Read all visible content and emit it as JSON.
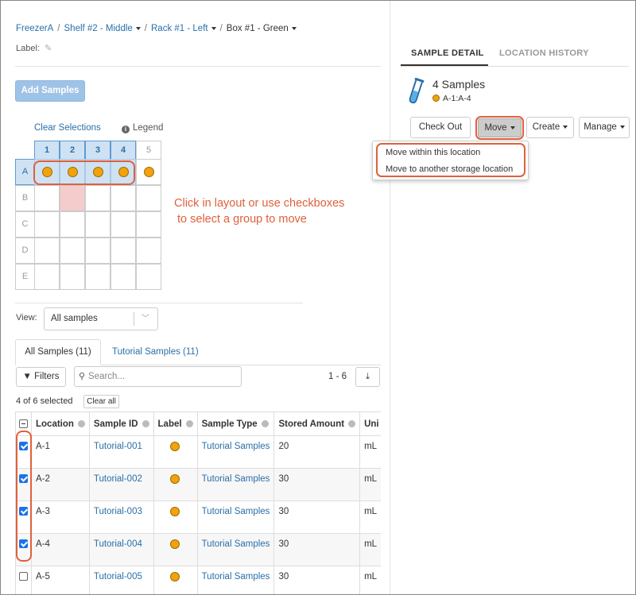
{
  "breadcrumb": {
    "freezer": "FreezerA",
    "shelf": "Shelf #2 - Middle",
    "rack": "Rack #1 - Left",
    "box": "Box #1 - Green"
  },
  "label_field": {
    "label": "Label:"
  },
  "add_samples": "Add Samples",
  "grid_controls": {
    "clear_selections": "Clear Selections",
    "legend": "Legend"
  },
  "grid": {
    "columns": [
      "1",
      "2",
      "3",
      "4",
      "5"
    ],
    "rows": [
      "A",
      "B",
      "C",
      "D",
      "E"
    ],
    "selected_columns": [
      "1",
      "2",
      "3",
      "4"
    ],
    "selected_row": "A"
  },
  "annotation": {
    "line1": "Click in layout or use checkboxes",
    "line2": " to select a group to move"
  },
  "view": {
    "label": "View:",
    "value": "All samples"
  },
  "tabs": {
    "all": "All Samples (11)",
    "tutorial": "Tutorial Samples (11)"
  },
  "toolbar": {
    "filters": "Filters",
    "search_placeholder": "Search...",
    "page_range": "1 - 6"
  },
  "selection": {
    "count_text": "4 of 6 selected",
    "clear_all": "Clear all"
  },
  "table": {
    "headers": [
      "Location",
      "Sample ID",
      "Label",
      "Sample Type",
      "Stored Amount",
      "Uni"
    ],
    "rows": [
      {
        "checked": true,
        "location": "A-1",
        "sample_id": "Tutorial-001",
        "sample_type": "Tutorial Samples",
        "amount": "20",
        "unit": "mL"
      },
      {
        "checked": true,
        "location": "A-2",
        "sample_id": "Tutorial-002",
        "sample_type": "Tutorial Samples",
        "amount": "30",
        "unit": "mL"
      },
      {
        "checked": true,
        "location": "A-3",
        "sample_id": "Tutorial-003",
        "sample_type": "Tutorial Samples",
        "amount": "30",
        "unit": "mL"
      },
      {
        "checked": true,
        "location": "A-4",
        "sample_id": "Tutorial-004",
        "sample_type": "Tutorial Samples",
        "amount": "30",
        "unit": "mL"
      },
      {
        "checked": false,
        "location": "A-5",
        "sample_id": "Tutorial-005",
        "sample_type": "Tutorial Samples",
        "amount": "30",
        "unit": "mL"
      }
    ]
  },
  "detail": {
    "tab_detail": "SAMPLE DETAIL",
    "tab_history": "LOCATION HISTORY",
    "samples_count": "4 Samples",
    "range": "A-1:A-4",
    "buttons": {
      "check_out": "Check Out",
      "move": "Move",
      "create": "Create",
      "manage": "Manage"
    },
    "move_menu": [
      "Move within this location",
      "Move to another storage location"
    ]
  },
  "colors": {
    "accent": "#2a6fa8",
    "annotation": "#e0603c",
    "sample_dot": "#f0a30a",
    "selection": "#cfe2f3"
  }
}
